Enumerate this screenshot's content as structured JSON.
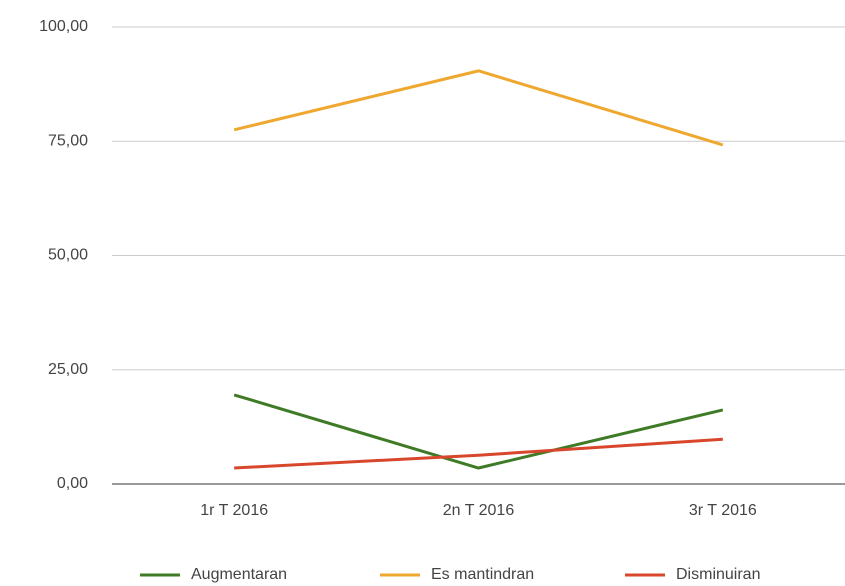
{
  "chart_data": {
    "type": "line",
    "categories": [
      "1r T 2016",
      "2n T 2016",
      "3r T 2016"
    ],
    "series": [
      {
        "name": "Augmentaran",
        "color": "#3f7b26",
        "values": [
          19.5,
          3.5,
          16.2
        ]
      },
      {
        "name": "Es mantindran",
        "color": "#efa82f",
        "values": [
          77.5,
          90.4,
          74.2
        ]
      },
      {
        "name": "Disminuiran",
        "color": "#d8462b",
        "values": [
          3.5,
          6.3,
          9.8
        ]
      }
    ],
    "ylim": [
      0,
      100
    ],
    "yticks": [
      {
        "value": 0,
        "label": "0,00"
      },
      {
        "value": 25,
        "label": "25,00"
      },
      {
        "value": 50,
        "label": "50,00"
      },
      {
        "value": 75,
        "label": "75,00"
      },
      {
        "value": 100,
        "label": "100,00"
      }
    ],
    "grid": true,
    "legend": "bottom"
  }
}
